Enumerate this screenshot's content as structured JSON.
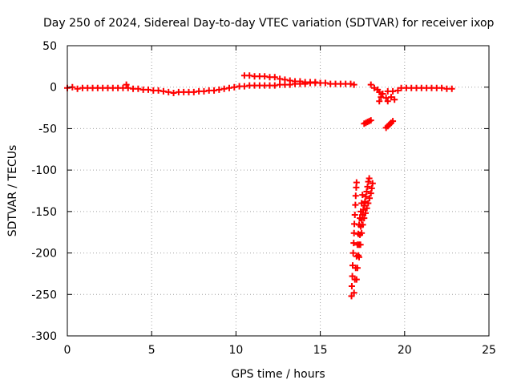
{
  "chart_data": {
    "type": "scatter",
    "title": "Day 250 of 2024, Sidereal Day-to-day VTEC variation (SDTVAR) for receiver ixop",
    "xlabel": "GPS time / hours",
    "ylabel": "SDTVAR / TECUs",
    "xlim": [
      0,
      25
    ],
    "ylim": [
      -300,
      50
    ],
    "xticks": [
      0,
      5,
      10,
      15,
      20,
      25
    ],
    "yticks": [
      50,
      0,
      -50,
      -100,
      -150,
      -200,
      -250,
      -300
    ],
    "grid": true,
    "legend": "none",
    "marker": "+",
    "color": "#ff0000",
    "series": [
      {
        "values": [
          [
            0.0,
            -1
          ],
          [
            0.3,
            0
          ],
          [
            0.6,
            -2
          ],
          [
            0.9,
            -1
          ],
          [
            1.2,
            -1
          ],
          [
            1.5,
            -1
          ],
          [
            1.8,
            -1
          ],
          [
            2.1,
            -1
          ],
          [
            2.4,
            -1
          ],
          [
            2.7,
            -1
          ],
          [
            3.0,
            -1
          ],
          [
            3.3,
            -1
          ],
          [
            3.5,
            3
          ],
          [
            3.6,
            -1
          ],
          [
            3.9,
            -2
          ],
          [
            4.2,
            -2
          ],
          [
            4.5,
            -3
          ],
          [
            4.8,
            -3
          ],
          [
            5.1,
            -4
          ],
          [
            5.4,
            -4
          ],
          [
            5.7,
            -5
          ],
          [
            6.0,
            -6
          ],
          [
            6.3,
            -7
          ],
          [
            6.6,
            -6
          ],
          [
            6.9,
            -6
          ],
          [
            7.2,
            -6
          ],
          [
            7.5,
            -6
          ],
          [
            7.8,
            -5
          ],
          [
            8.1,
            -5
          ],
          [
            8.4,
            -4
          ],
          [
            8.7,
            -4
          ],
          [
            9.0,
            -3
          ],
          [
            9.3,
            -2
          ],
          [
            9.6,
            -1
          ],
          [
            9.9,
            0
          ],
          [
            10.2,
            1
          ],
          [
            10.5,
            1
          ],
          [
            10.8,
            2
          ],
          [
            11.1,
            2
          ],
          [
            11.4,
            2
          ],
          [
            11.7,
            2
          ],
          [
            12.0,
            2
          ],
          [
            12.3,
            2
          ],
          [
            12.6,
            3
          ],
          [
            12.9,
            3
          ],
          [
            13.2,
            3
          ],
          [
            13.5,
            4
          ],
          [
            13.8,
            4
          ],
          [
            14.1,
            4
          ],
          [
            14.4,
            5
          ],
          [
            14.7,
            5
          ],
          [
            15.0,
            5
          ],
          [
            15.3,
            5
          ],
          [
            15.6,
            4
          ],
          [
            15.9,
            4
          ],
          [
            16.2,
            4
          ],
          [
            16.5,
            4
          ],
          [
            16.8,
            4
          ],
          [
            17.0,
            3
          ],
          [
            10.5,
            14
          ],
          [
            10.8,
            14
          ],
          [
            11.1,
            13
          ],
          [
            11.4,
            13
          ],
          [
            11.7,
            13
          ],
          [
            12.0,
            12
          ],
          [
            12.3,
            12
          ],
          [
            12.6,
            10
          ],
          [
            12.9,
            9
          ],
          [
            13.2,
            8
          ],
          [
            13.5,
            7
          ],
          [
            13.8,
            7
          ],
          [
            14.1,
            6
          ],
          [
            14.4,
            6
          ],
          [
            14.7,
            6
          ],
          [
            15.0,
            5
          ],
          [
            18.0,
            -40
          ],
          [
            17.9,
            -41
          ],
          [
            17.8,
            -42
          ],
          [
            17.7,
            -43
          ],
          [
            17.6,
            -44
          ],
          [
            19.3,
            -41
          ],
          [
            19.2,
            -43
          ],
          [
            19.1,
            -45
          ],
          [
            19.0,
            -47
          ],
          [
            18.9,
            -49
          ],
          [
            18.0,
            3
          ],
          [
            18.2,
            -1
          ],
          [
            18.4,
            -3
          ],
          [
            18.5,
            -6
          ],
          [
            18.6,
            -12
          ],
          [
            18.5,
            -17
          ],
          [
            18.7,
            -8
          ],
          [
            18.9,
            -13
          ],
          [
            19.0,
            -17
          ],
          [
            19.2,
            -12
          ],
          [
            19.4,
            -15
          ],
          [
            19.0,
            -5
          ],
          [
            19.3,
            -5
          ],
          [
            19.6,
            -4
          ],
          [
            19.8,
            -1
          ],
          [
            20.1,
            -1
          ],
          [
            20.4,
            -1
          ],
          [
            20.7,
            -1
          ],
          [
            21.0,
            -1
          ],
          [
            21.3,
            -1
          ],
          [
            21.6,
            -1
          ],
          [
            21.9,
            -1
          ],
          [
            22.2,
            -1
          ],
          [
            22.5,
            -2
          ],
          [
            22.8,
            -2
          ],
          [
            16.85,
            -252
          ],
          [
            16.87,
            -240
          ],
          [
            16.9,
            -228
          ],
          [
            16.92,
            -215
          ],
          [
            16.95,
            -200
          ],
          [
            16.98,
            -188
          ],
          [
            17.0,
            -176
          ],
          [
            17.02,
            -165
          ],
          [
            17.05,
            -154
          ],
          [
            17.08,
            -142
          ],
          [
            17.1,
            -131
          ],
          [
            17.13,
            -121
          ],
          [
            17.15,
            -115
          ],
          [
            17.0,
            -248
          ],
          [
            17.05,
            -232
          ],
          [
            17.1,
            -218
          ],
          [
            17.15,
            -204
          ],
          [
            17.2,
            -190
          ],
          [
            17.25,
            -177
          ],
          [
            17.3,
            -166
          ],
          [
            17.35,
            -158
          ],
          [
            17.4,
            -150
          ],
          [
            17.45,
            -140
          ],
          [
            17.5,
            -130
          ],
          [
            17.15,
            -232
          ],
          [
            17.2,
            -218
          ],
          [
            17.25,
            -203
          ],
          [
            17.3,
            -190
          ],
          [
            17.35,
            -178
          ],
          [
            17.4,
            -168
          ],
          [
            17.45,
            -160
          ],
          [
            17.5,
            -154
          ],
          [
            17.55,
            -148
          ],
          [
            17.6,
            -143
          ],
          [
            17.65,
            -138
          ],
          [
            17.7,
            -132
          ],
          [
            17.75,
            -126
          ],
          [
            17.8,
            -120
          ],
          [
            17.85,
            -114
          ],
          [
            17.9,
            -110
          ],
          [
            17.3,
            -205
          ],
          [
            17.38,
            -190
          ],
          [
            17.45,
            -176
          ],
          [
            17.52,
            -166
          ],
          [
            17.6,
            -158
          ],
          [
            17.68,
            -152
          ],
          [
            17.76,
            -146
          ],
          [
            17.84,
            -140
          ],
          [
            17.92,
            -134
          ],
          [
            18.0,
            -128
          ],
          [
            18.05,
            -122
          ],
          [
            18.1,
            -116
          ]
        ]
      }
    ]
  }
}
